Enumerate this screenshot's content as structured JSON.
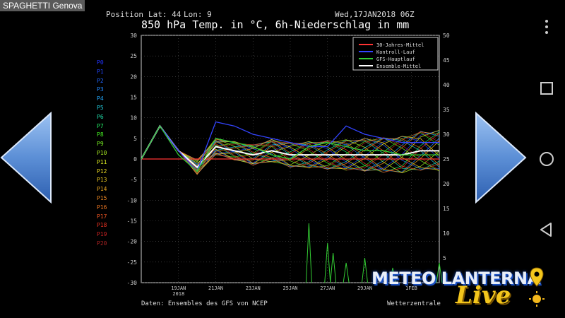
{
  "app": {
    "title": "SPAGHETTI Genova"
  },
  "header": {
    "position_label": "Position",
    "lat_label": "Lat: 44",
    "lon_label": "Lon: 9",
    "run_date": "Wed,17JAN2018 06Z",
    "title": "850 hPa Temp. in °C, 6h-Niederschlag in mm"
  },
  "members": [
    {
      "label": "P0",
      "color": "#2233ff"
    },
    {
      "label": "P1",
      "color": "#2244ff"
    },
    {
      "label": "P2",
      "color": "#2266ff"
    },
    {
      "label": "P3",
      "color": "#2288ff"
    },
    {
      "label": "P4",
      "color": "#22aaff"
    },
    {
      "label": "P5",
      "color": "#22ccdd"
    },
    {
      "label": "P6",
      "color": "#22ddaa"
    },
    {
      "label": "P7",
      "color": "#22ee66"
    },
    {
      "label": "P8",
      "color": "#44ee22"
    },
    {
      "label": "P9",
      "color": "#77ee22"
    },
    {
      "label": "P10",
      "color": "#aaee22"
    },
    {
      "label": "P11",
      "color": "#ddee22"
    },
    {
      "label": "P12",
      "color": "#eedd22"
    },
    {
      "label": "P13",
      "color": "#eecc22"
    },
    {
      "label": "P14",
      "color": "#eeaa22"
    },
    {
      "label": "P15",
      "color": "#ee8822"
    },
    {
      "label": "P16",
      "color": "#ee7722"
    },
    {
      "label": "P17",
      "color": "#ee5522"
    },
    {
      "label": "P18",
      "color": "#ee3322"
    },
    {
      "label": "P19",
      "color": "#cc2222"
    },
    {
      "label": "P20",
      "color": "#aa2222"
    }
  ],
  "chart_data": {
    "type": "line",
    "x_ticks": [
      "19JAN\n2018",
      "21JAN",
      "23JAN",
      "25JAN",
      "27JAN",
      "29JAN",
      "1FEB"
    ],
    "y_left": {
      "ylim": [
        -30,
        30
      ],
      "ticks": [
        30,
        25,
        20,
        15,
        10,
        5,
        0,
        -5,
        -10,
        -15,
        -20,
        -25,
        -30
      ]
    },
    "y_right": {
      "ylim": [
        0,
        50
      ],
      "ticks": [
        50,
        45,
        40,
        35,
        30,
        25,
        20,
        15,
        10,
        5
      ]
    },
    "legend": [
      {
        "name": "30-Jahres-Mittel",
        "color": "#ff3333"
      },
      {
        "name": "Kontroll-Lauf",
        "color": "#3344ff"
      },
      {
        "name": "GFS-Hauptlauf",
        "color": "#33cc33"
      },
      {
        "name": "Ensemble-Mittel",
        "color": "#ffffff"
      }
    ],
    "legend_position": "top-right",
    "series_days": [
      0,
      1,
      2,
      3,
      4,
      5,
      6,
      7,
      8,
      9,
      10,
      11,
      12,
      13,
      14,
      15,
      16
    ],
    "series": [
      {
        "name": "30-Jahres-Mittel",
        "color": "#ff3333",
        "values": [
          0,
          0,
          0,
          0,
          0,
          0,
          0,
          0,
          0,
          0,
          0,
          0,
          0,
          0,
          0,
          0,
          0
        ]
      },
      {
        "name": "Ensemble-Mittel",
        "color": "#ffffff",
        "values": [
          0,
          8,
          2,
          -2,
          3,
          2,
          1,
          2,
          1,
          1,
          1,
          1,
          1,
          1,
          1,
          2,
          2
        ]
      },
      {
        "name": "Kontroll-Lauf",
        "color": "#3344ff",
        "values": [
          0,
          8,
          2,
          -3,
          9,
          8,
          6,
          5,
          4,
          3,
          3,
          8,
          6,
          5,
          4,
          4,
          4
        ]
      },
      {
        "name": "GFS-Hauptlauf",
        "color": "#33cc33",
        "values": [
          0,
          8,
          1,
          -3,
          5,
          4,
          3,
          1,
          0,
          3,
          4,
          3,
          2,
          2,
          1,
          1,
          1
        ]
      }
    ],
    "precip_peaks": [
      {
        "day": 9,
        "mm": 12
      },
      {
        "day": 10,
        "mm": 8
      },
      {
        "day": 10.3,
        "mm": 6
      },
      {
        "day": 11,
        "mm": 4
      },
      {
        "day": 12,
        "mm": 5
      },
      {
        "day": 13.5,
        "mm": 3
      },
      {
        "day": 16,
        "mm": 4
      }
    ]
  },
  "footer": {
    "source": "Daten: Ensembles des GFS von NCEP",
    "provider": "Wetterzentrale"
  },
  "logo": {
    "text": "METEO LANTERNA",
    "script": "Live"
  },
  "nav": {
    "prev_icon": "left-arrow-icon",
    "next_icon": "right-arrow-icon"
  },
  "system": {
    "menu_icon": "more-vert-icon",
    "recents_icon": "square-icon",
    "home_icon": "circle-icon",
    "back_icon": "triangle-back-icon"
  }
}
